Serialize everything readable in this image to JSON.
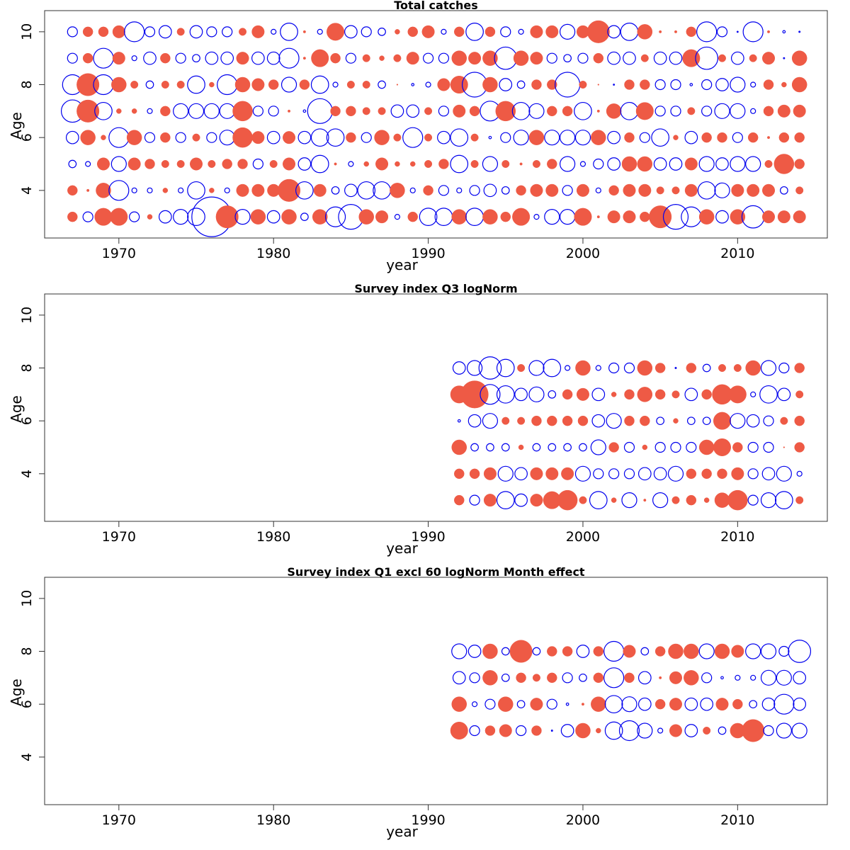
{
  "colors": {
    "positive": "#ee5a45",
    "negative": "#0000ee",
    "frame": "#333333"
  },
  "chart_data": [
    {
      "type": "scatter",
      "subtype": "bubble",
      "title": "Total catches",
      "xlabel": "year",
      "ylabel": "Age",
      "xlim": [
        1965.2,
        2015.8
      ],
      "ylim": [
        2.2,
        10.8
      ],
      "x_ticks": [
        1970,
        1980,
        1990,
        2000,
        2010
      ],
      "y_ticks": [
        4,
        6,
        8,
        10
      ],
      "years": [
        1967,
        1968,
        1969,
        1970,
        1971,
        1972,
        1973,
        1974,
        1975,
        1976,
        1977,
        1978,
        1979,
        1980,
        1981,
        1982,
        1983,
        1984,
        1985,
        1986,
        1987,
        1988,
        1989,
        1990,
        1991,
        1992,
        1993,
        1994,
        1995,
        1996,
        1997,
        1998,
        1999,
        2000,
        2001,
        2002,
        2003,
        2004,
        2005,
        2006,
        2007,
        2008,
        2009,
        2010,
        2011,
        2012,
        2013,
        2014
      ],
      "ages": [
        3,
        4,
        5,
        6,
        7,
        8,
        9,
        10
      ],
      "residuals": [
        [
          0.4,
          -0.4,
          0.7,
          0.7,
          -0.4,
          0.2,
          -0.5,
          -0.6,
          -0.7,
          -1.6,
          0.9,
          -0.6,
          0.6,
          -0.5,
          0.6,
          -0.3,
          0.6,
          -0.8,
          -1.0,
          0.6,
          0.5,
          -0.2,
          0.4,
          -0.7,
          -0.7,
          0.6,
          -0.7,
          0.6,
          0.4,
          0.7,
          -0.2,
          -0.6,
          -0.6,
          0.7,
          0.1,
          0.5,
          0.5,
          0.4,
          0.9,
          -1.0,
          -0.8,
          0.6,
          -0.5,
          0.6,
          -0.9,
          0.5,
          0.5,
          0.5
        ],
        [
          0.4,
          0.1,
          0.6,
          -0.8,
          -0.2,
          -0.2,
          0.2,
          -0.2,
          -0.7,
          0.2,
          -0.2,
          0.5,
          0.5,
          0.5,
          0.9,
          -0.7,
          0.5,
          -0.3,
          -0.5,
          -0.7,
          -0.7,
          0.6,
          -0.2,
          0.4,
          -0.4,
          -0.2,
          -0.4,
          -0.5,
          -0.3,
          0.4,
          0.5,
          0.5,
          -0.4,
          0.5,
          -0.2,
          0.4,
          0.5,
          0.5,
          0.3,
          0.3,
          0.5,
          -0.7,
          -0.6,
          0.5,
          0.5,
          0.5,
          -0.3,
          0.3
        ],
        [
          -0.3,
          -0.2,
          0.5,
          -0.6,
          0.5,
          0.4,
          0.3,
          0.3,
          0.5,
          0.3,
          0.4,
          0.4,
          -0.4,
          0.3,
          0.5,
          -0.5,
          -0.7,
          0.1,
          -0.2,
          0.2,
          0.5,
          0.2,
          0.2,
          0.3,
          0.4,
          -0.7,
          0.3,
          -0.6,
          0.3,
          0.1,
          0.3,
          0.4,
          -0.6,
          -0.2,
          -0.4,
          -0.5,
          0.6,
          0.6,
          -0.5,
          -0.5,
          0.5,
          -0.6,
          -0.5,
          -0.6,
          -0.6,
          0.3,
          0.8,
          0.4
        ],
        [
          -0.5,
          0.6,
          0.2,
          -0.8,
          0.6,
          -0.4,
          0.4,
          -0.4,
          0.3,
          -0.4,
          -0.6,
          0.8,
          0.5,
          -0.5,
          0.5,
          -0.5,
          -0.7,
          -0.7,
          0.4,
          -0.4,
          0.6,
          0.3,
          -0.8,
          0.3,
          -0.5,
          -0.7,
          0.3,
          -0.1,
          -0.4,
          -0.6,
          0.6,
          -0.6,
          -0.6,
          -0.6,
          0.6,
          -0.5,
          0.4,
          -0.4,
          -0.7,
          0.2,
          -0.5,
          0.4,
          0.4,
          -0.4,
          0.4,
          0.1,
          0.4,
          0.4
        ],
        [
          -0.9,
          0.9,
          -0.7,
          0.2,
          0.2,
          -0.2,
          0.4,
          -0.6,
          -0.6,
          -0.6,
          -0.6,
          0.8,
          -0.4,
          -0.4,
          0.1,
          -0.1,
          -1.0,
          0.4,
          0.4,
          0.3,
          0.3,
          -0.5,
          -0.5,
          0.3,
          -0.4,
          0.5,
          0.4,
          -0.8,
          0.8,
          -0.7,
          -0.6,
          0.4,
          0.4,
          -0.7,
          0.1,
          0.6,
          -0.7,
          0.7,
          -0.4,
          -0.4,
          0.3,
          -0.4,
          -0.6,
          -0.6,
          -0.2,
          0.4,
          0.5,
          0.5
        ],
        [
          -0.8,
          0.9,
          -0.8,
          0.6,
          0.3,
          -0.3,
          0.3,
          0.3,
          -0.7,
          0.2,
          -0.8,
          0.6,
          0.5,
          0.4,
          -0.6,
          0.4,
          -0.7,
          -0.2,
          0.3,
          0.3,
          -0.3,
          0.05,
          -0.1,
          -0.2,
          0.5,
          0.7,
          -1.0,
          0.6,
          -0.5,
          -0.3,
          0.4,
          0.4,
          -1.0,
          0.3,
          0.05,
          -0.02,
          0.4,
          0.4,
          -0.4,
          -0.4,
          -0.1,
          -0.4,
          -0.5,
          -0.6,
          -0.2,
          0.4,
          0.2,
          0.6
        ],
        [
          -0.4,
          0.4,
          -0.8,
          0.5,
          -0.2,
          -0.5,
          0.4,
          -0.4,
          -0.3,
          -0.5,
          -0.5,
          0.5,
          -0.5,
          -0.5,
          -0.8,
          0.1,
          0.7,
          0.4,
          -0.4,
          0.3,
          0.2,
          0.3,
          0.5,
          -0.4,
          -0.4,
          0.6,
          0.5,
          0.6,
          -0.9,
          0.6,
          0.5,
          -0.4,
          -0.3,
          -0.4,
          0.4,
          -0.5,
          -0.5,
          0.3,
          -0.5,
          -0.5,
          0.7,
          -0.9,
          0.3,
          -0.5,
          0.3,
          0.5,
          -0.05,
          0.6
        ],
        [
          -0.4,
          0.4,
          0.4,
          0.5,
          -0.8,
          -0.4,
          -0.5,
          0.3,
          -0.5,
          -0.4,
          -0.4,
          0.3,
          0.5,
          -0.2,
          -0.7,
          0.1,
          -0.2,
          0.7,
          -0.5,
          -0.4,
          -0.3,
          0.2,
          0.4,
          0.5,
          -0.2,
          0.4,
          -0.7,
          0.4,
          -0.4,
          -0.2,
          0.5,
          0.5,
          -0.6,
          0.5,
          0.9,
          -0.5,
          -0.7,
          0.6,
          0.1,
          0.1,
          0.4,
          -0.8,
          -0.4,
          -0.02,
          -0.8,
          0.1,
          -0.1,
          -0.05
        ]
      ]
    },
    {
      "type": "scatter",
      "subtype": "bubble",
      "title": "Survey index Q3 logNorm",
      "xlabel": "year",
      "ylabel": "Age",
      "xlim": [
        1965.2,
        2015.8
      ],
      "ylim": [
        2.2,
        10.8
      ],
      "x_ticks": [
        1970,
        1980,
        1990,
        2000,
        2010
      ],
      "y_ticks": [
        4,
        6,
        8,
        10
      ],
      "years": [
        1992,
        1993,
        1994,
        1995,
        1996,
        1997,
        1998,
        1999,
        2000,
        2001,
        2002,
        2003,
        2004,
        2005,
        2006,
        2007,
        2008,
        2009,
        2010,
        2011,
        2012,
        2013,
        2014
      ],
      "ages": [
        3,
        4,
        5,
        6,
        7,
        8
      ],
      "residuals": [
        [
          0.4,
          -0.4,
          0.5,
          -0.7,
          -0.5,
          0.5,
          0.7,
          0.8,
          0.3,
          -0.7,
          0.2,
          -0.6,
          0.1,
          -0.6,
          0.3,
          0.4,
          0.2,
          0.6,
          0.8,
          -0.4,
          -0.6,
          -0.7,
          0.3
        ],
        [
          0.4,
          0.4,
          0.5,
          -0.6,
          -0.5,
          0.5,
          0.5,
          0.5,
          -0.6,
          -0.4,
          -0.4,
          -0.4,
          -0.5,
          -0.5,
          -0.6,
          0.4,
          0.4,
          0.4,
          0.5,
          -0.4,
          -0.5,
          -0.6,
          -0.2
        ],
        [
          0.6,
          -0.3,
          -0.3,
          -0.3,
          0.2,
          -0.3,
          -0.3,
          -0.3,
          -0.3,
          -0.6,
          0.4,
          -0.4,
          0.2,
          -0.4,
          -0.4,
          -0.4,
          0.6,
          0.7,
          0.4,
          -0.4,
          -0.4,
          0.05,
          0.4
        ],
        [
          -0.1,
          -0.5,
          -0.6,
          0.3,
          0.3,
          0.4,
          0.4,
          0.4,
          0.4,
          -0.5,
          -0.6,
          0.4,
          0.4,
          -0.3,
          0.2,
          -0.3,
          -0.3,
          0.7,
          -0.6,
          -0.5,
          -0.4,
          0.3,
          0.4
        ],
        [
          0.7,
          1.1,
          -0.8,
          -0.7,
          -0.5,
          -0.6,
          -0.3,
          0.4,
          0.5,
          -0.5,
          0.2,
          0.4,
          0.6,
          0.4,
          0.3,
          -0.5,
          0.4,
          0.8,
          0.7,
          -0.2,
          -0.7,
          -0.5,
          0.3
        ],
        [
          -0.5,
          -0.6,
          -0.9,
          -0.7,
          0.3,
          -0.6,
          -0.7,
          -0.2,
          0.6,
          -0.2,
          -0.4,
          -0.4,
          0.6,
          0.4,
          -0.05,
          0.4,
          -0.3,
          0.3,
          0.3,
          0.6,
          -0.6,
          -0.4,
          0.4
        ]
      ]
    },
    {
      "type": "scatter",
      "subtype": "bubble",
      "title": "Survey index Q1 excl 60 logNorm Month effect",
      "xlabel": "year",
      "ylabel": "Age",
      "xlim": [
        1965.2,
        2015.8
      ],
      "ylim": [
        2.2,
        10.8
      ],
      "x_ticks": [
        1970,
        1980,
        1990,
        2000,
        2010
      ],
      "y_ticks": [
        4,
        6,
        8,
        10
      ],
      "years": [
        1992,
        1993,
        1994,
        1995,
        1996,
        1997,
        1998,
        1999,
        2000,
        2001,
        2002,
        2003,
        2004,
        2005,
        2006,
        2007,
        2008,
        2009,
        2010,
        2011,
        2012,
        2013,
        2014
      ],
      "ages": [
        5,
        6,
        7,
        8
      ],
      "residuals": [
        [
          0.7,
          -0.4,
          0.4,
          0.5,
          -0.4,
          0.4,
          -0.05,
          -0.5,
          0.6,
          0.2,
          -0.7,
          -0.8,
          -0.6,
          -0.2,
          0.5,
          -0.5,
          0.3,
          -0.3,
          0.6,
          0.9,
          -0.4,
          -0.6,
          -0.6
        ],
        [
          0.6,
          -0.2,
          -0.4,
          0.6,
          -0.3,
          0.5,
          -0.4,
          -0.1,
          0.1,
          0.6,
          -0.7,
          -0.6,
          -0.5,
          0.4,
          0.5,
          -0.5,
          -0.5,
          0.5,
          0.4,
          -0.3,
          -0.5,
          -0.8,
          -0.5
        ],
        [
          -0.5,
          -0.4,
          0.6,
          -0.3,
          0.4,
          0.3,
          0.4,
          -0.4,
          -0.3,
          0.4,
          -0.8,
          0.4,
          -0.5,
          0.1,
          0.5,
          0.6,
          -0.4,
          -0.1,
          -0.2,
          -0.2,
          -0.6,
          -0.6,
          -0.5
        ],
        [
          -0.6,
          -0.5,
          0.6,
          -0.3,
          0.9,
          -0.3,
          0.4,
          0.4,
          -0.5,
          0.4,
          -0.8,
          0.5,
          -0.3,
          0.4,
          0.6,
          0.6,
          -0.6,
          0.6,
          0.5,
          -0.6,
          -0.6,
          -0.4,
          -0.9
        ]
      ]
    }
  ]
}
